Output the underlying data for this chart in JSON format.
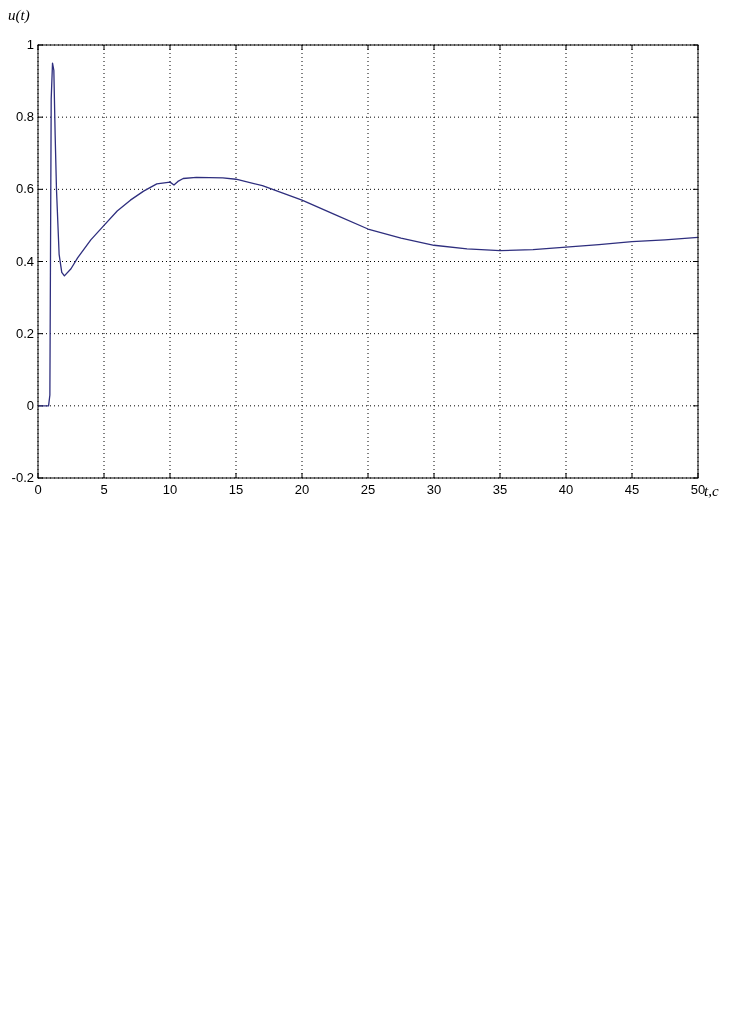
{
  "chart_data": {
    "type": "line",
    "xlabel": "t,c",
    "ylabel": "u(t)",
    "xlim": [
      0,
      50
    ],
    "xticks": [
      0,
      5,
      10,
      15,
      20,
      25,
      30,
      35,
      40,
      45,
      50
    ],
    "ylim": [
      -0.2,
      1
    ],
    "yticks": [
      -0.2,
      0,
      0.2,
      0.4,
      0.6,
      0.8,
      1
    ],
    "grid": true,
    "line_style": "solid",
    "series": [
      {
        "color": "#2e2e7e",
        "x": [
          0,
          0.8,
          0.9,
          1.0,
          1.1,
          1.2,
          1.3,
          1.4,
          1.6,
          1.8,
          2.0,
          2.5,
          3,
          4,
          5,
          6,
          7,
          8,
          9,
          10,
          10.3,
          10.6,
          11,
          12,
          14,
          15,
          17,
          20,
          22.5,
          25,
          27.5,
          30,
          32.5,
          35,
          37.5,
          40,
          42.5,
          45,
          47.5,
          50
        ],
        "values": [
          0,
          0,
          0.03,
          0.85,
          0.95,
          0.93,
          0.75,
          0.6,
          0.42,
          0.37,
          0.36,
          0.38,
          0.41,
          0.46,
          0.5,
          0.54,
          0.57,
          0.595,
          0.615,
          0.62,
          0.612,
          0.622,
          0.63,
          0.633,
          0.632,
          0.628,
          0.61,
          0.57,
          0.53,
          0.49,
          0.465,
          0.445,
          0.435,
          0.43,
          0.433,
          0.44,
          0.447,
          0.455,
          0.46,
          0.467
        ]
      }
    ]
  }
}
